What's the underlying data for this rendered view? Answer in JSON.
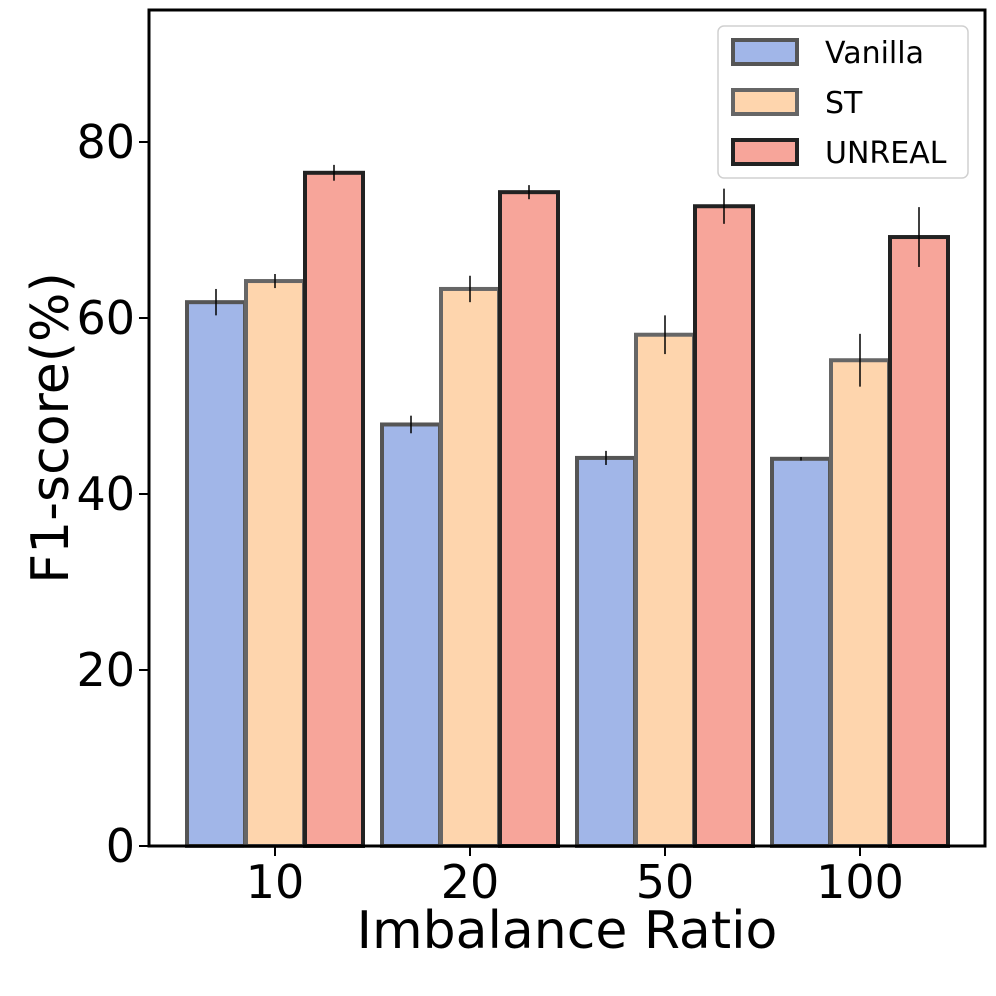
{
  "chart_data": {
    "type": "bar",
    "title": "",
    "xlabel": "Imbalance Ratio",
    "ylabel": "F1-score(%)",
    "categories": [
      "10",
      "20",
      "50",
      "100"
    ],
    "ylim": [
      0,
      95
    ],
    "yticks": [
      0,
      20,
      40,
      60,
      80
    ],
    "grid": false,
    "legend_position": "top-right",
    "series": [
      {
        "name": "Vanilla",
        "color": "#a1b6e8",
        "edge": "#555555",
        "values": [
          61.8,
          47.9,
          44.1,
          44.0
        ],
        "errors": [
          1.5,
          1.0,
          0.8,
          0.2
        ]
      },
      {
        "name": "ST",
        "color": "#fed5ad",
        "edge": "#666666",
        "values": [
          64.2,
          63.3,
          58.1,
          55.2
        ],
        "errors": [
          0.8,
          1.5,
          2.2,
          3.0
        ]
      },
      {
        "name": "UNREAL",
        "color": "#f7a59a",
        "edge": "#222222",
        "values": [
          76.5,
          74.3,
          72.7,
          69.2
        ],
        "errors": [
          0.9,
          0.8,
          2.0,
          3.4
        ]
      }
    ]
  }
}
